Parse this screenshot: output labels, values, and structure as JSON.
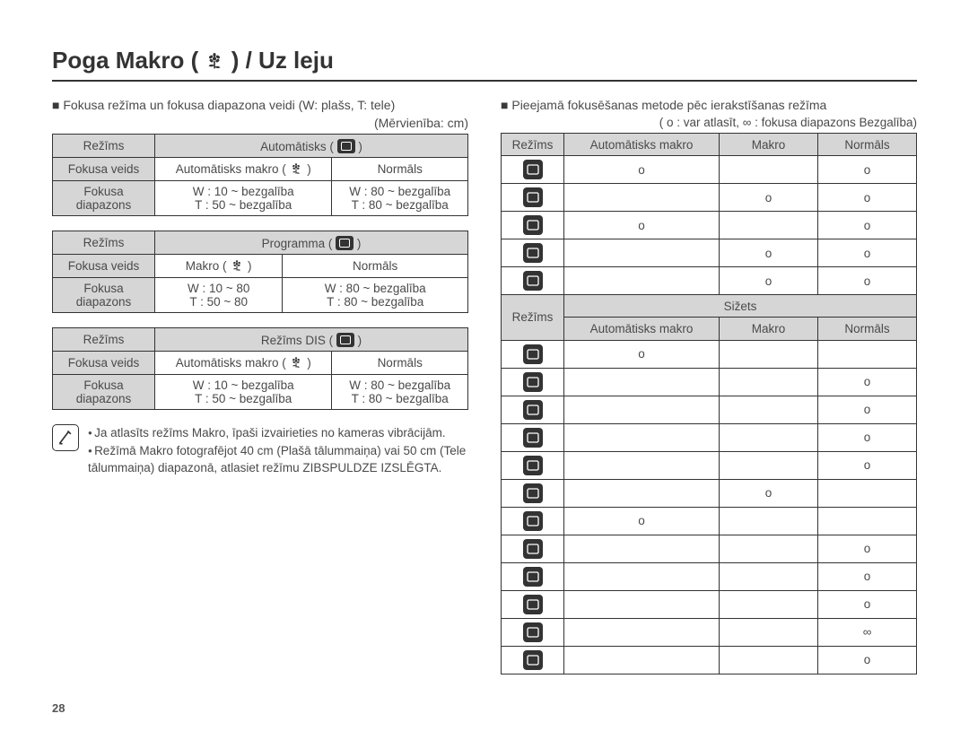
{
  "page_number": "28",
  "title_prefix": "Poga Makro (",
  "title_suffix": ") / Uz leju",
  "left": {
    "intro": "Fokusa režīma un fokusa diapazona veidi (W: plašs, T: tele)",
    "unit": "(Mērvienība: cm)",
    "labels": {
      "mode": "Režīms",
      "focus_type": "Fokusa veids",
      "focus_range": "Fokusa diapazons"
    },
    "tables": [
      {
        "mode_label": "Automātisks",
        "row2": [
          "Automātisks makro",
          "Normāls"
        ],
        "row3": [
          "W : 10 ~ bezgalība\nT : 50 ~ bezgalība",
          "W : 80 ~ bezgalība\nT : 80 ~ bezgalība"
        ]
      },
      {
        "mode_label": "Programma",
        "row2": [
          "Makro",
          "Normāls"
        ],
        "row3": [
          "W : 10 ~ 80\nT : 50 ~ 80",
          "W : 80 ~ bezgalība\nT : 80 ~ bezgalība"
        ]
      },
      {
        "mode_label": "Režīms DIS",
        "row2": [
          "Automātisks makro",
          "Normāls"
        ],
        "row3": [
          "W : 10 ~ bezgalība\nT : 50 ~ bezgalība",
          "W : 80 ~ bezgalība\nT : 80 ~ bezgalība"
        ]
      }
    ],
    "notes": [
      "Ja atlasīts režīms Makro, īpaši izvairieties no kameras vibrācijām.",
      "Režīmā Makro fotografējot 40 cm (Plašā tālummaiņa) vai 50 cm (Tele tālummaiņa) diapazonā, atlasiet režīmu ZIBSPULDZE IZSLĒGTA."
    ]
  },
  "right": {
    "intro": "Pieejamā fokusēšanas metode pēc ierakstīšanas režīma",
    "legend": "( o : var atlasīt, ∞ : fokusa diapazons Bezgalība)",
    "headers": {
      "mode": "Režīms",
      "auto_macro": "Automātisks makro",
      "macro": "Makro",
      "normal": "Normāls"
    },
    "scene_label": "Sižets",
    "section1_rows": [
      {
        "a": "o",
        "b": "",
        "c": "o"
      },
      {
        "a": "",
        "b": "o",
        "c": "o"
      },
      {
        "a": "o",
        "b": "",
        "c": "o"
      },
      {
        "a": "",
        "b": "o",
        "c": "o"
      },
      {
        "a": "",
        "b": "o",
        "c": "o"
      }
    ],
    "section2_rows": [
      {
        "a": "o",
        "b": "",
        "c": ""
      },
      {
        "a": "",
        "b": "",
        "c": "o"
      },
      {
        "a": "",
        "b": "",
        "c": "o"
      },
      {
        "a": "",
        "b": "",
        "c": "o"
      },
      {
        "a": "",
        "b": "",
        "c": "o"
      },
      {
        "a": "",
        "b": "o",
        "c": ""
      },
      {
        "a": "o",
        "b": "",
        "c": ""
      },
      {
        "a": "",
        "b": "",
        "c": "o"
      },
      {
        "a": "",
        "b": "",
        "c": "o"
      },
      {
        "a": "",
        "b": "",
        "c": "o"
      },
      {
        "a": "",
        "b": "",
        "c": "∞"
      },
      {
        "a": "",
        "b": "",
        "c": "o"
      }
    ]
  },
  "colors": {
    "border": "#333333",
    "shade": "#d6d6d6",
    "text": "#4a4a4a"
  }
}
